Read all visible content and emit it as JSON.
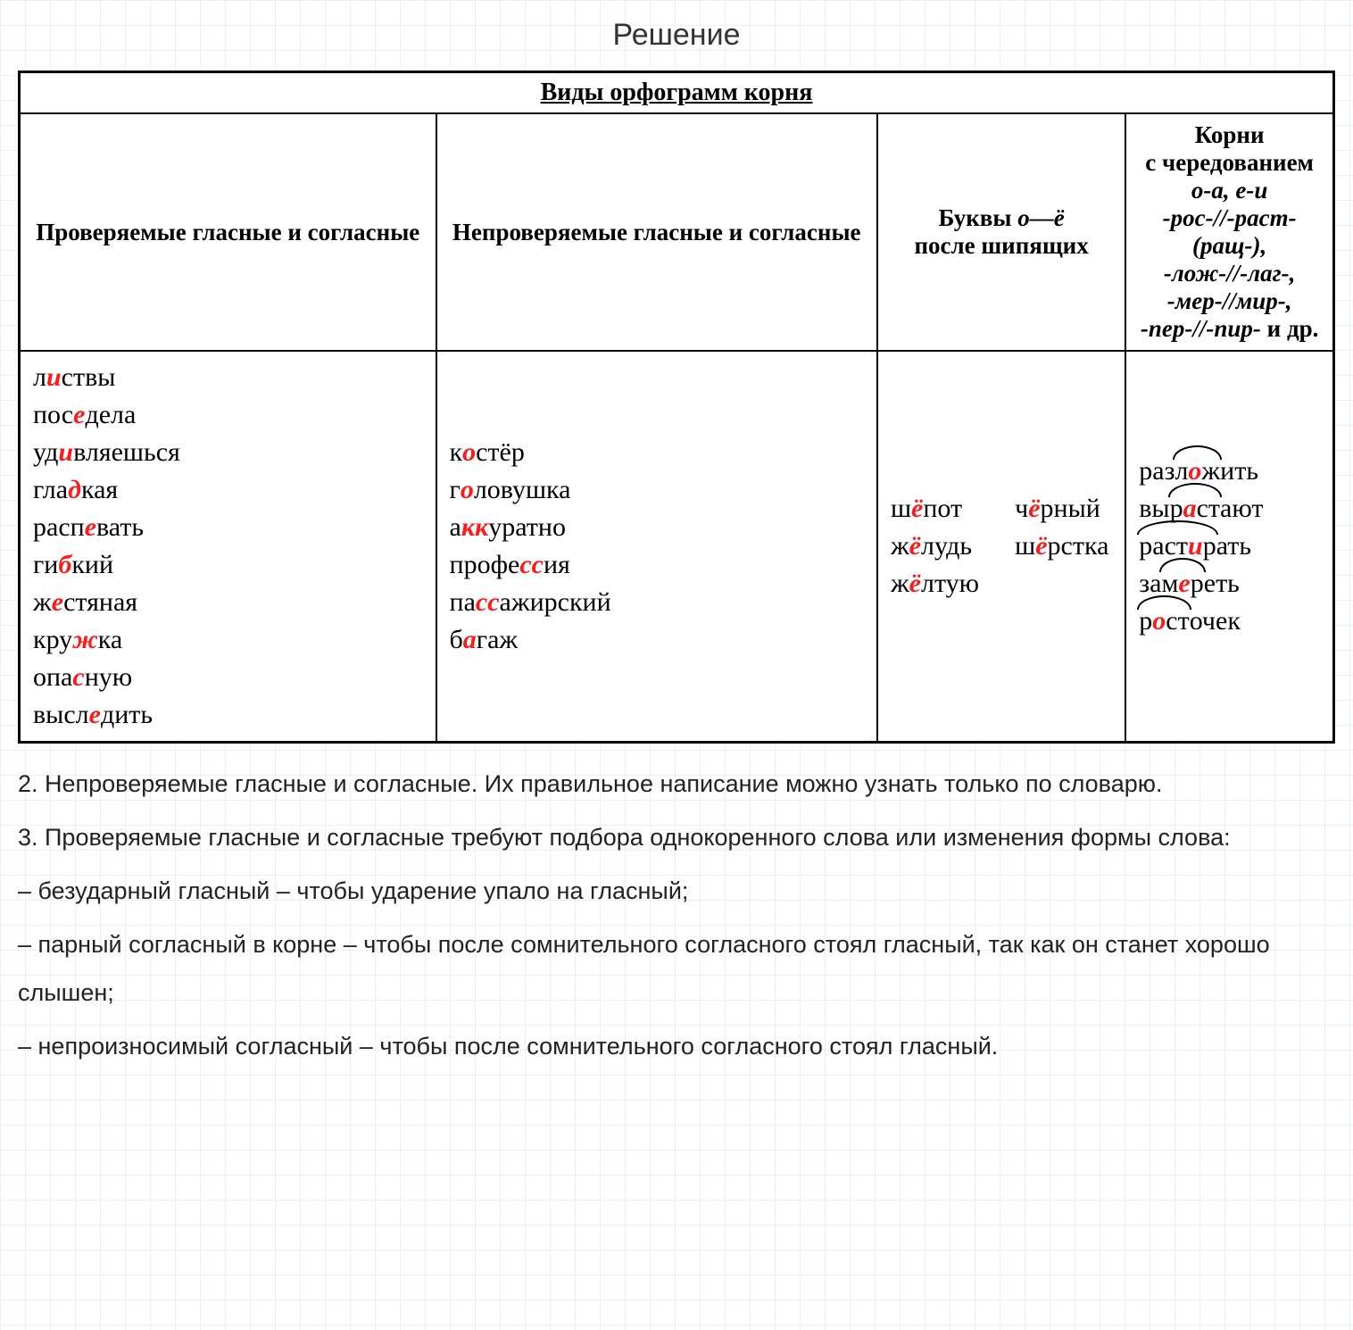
{
  "title": "Решение",
  "table": {
    "main_header": "Виды орфограмм корня",
    "columns": [
      "Проверяемые гласные и согласные",
      "Непроверяемые гласные и согласные",
      "Буквы <span class='italic'>о—ё</span><br>после шипящих",
      "Корни<br>с чередованием<br><span class='italic'>о-а, е-и<br>-рос-//-раст-<br>(ращ-),<br>-лож-//-лаг-,<br>-мер-//мир-,<br>-пер-//-пир-</span> и др."
    ],
    "col1": [
      "л<span class='hl'>и</span>ствы",
      "пос<span class='hl'>е</span>дела",
      "уд<span class='hl'>и</span>вляешься",
      "гла<span class='hl'>д</span>кая",
      "расп<span class='hl'>е</span>вать",
      "ги<span class='hl'>б</span>кий",
      "ж<span class='hl'>е</span>стяная",
      "кру<span class='hl'>ж</span>ка",
      "опа<span class='hl'>с</span>ную",
      "высл<span class='hl'>е</span>дить"
    ],
    "col2": [
      "к<span class='hl'>о</span>стёр",
      "г<span class='hl'>о</span>ловушка",
      "а<span class='hl'>кк</span>уратно",
      "профе<span class='hl'>сс</span>ия",
      "па<span class='hl'>сс</span>ажирский",
      "б<span class='hl'>а</span>гаж"
    ],
    "col3_left": [
      "ш<span class='hl'>ё</span>пот",
      "ж<span class='hl'>ё</span>лудь",
      "ж<span class='hl'>ё</span>лтую"
    ],
    "col3_right": [
      "ч<span class='hl'>ё</span>рный",
      "ш<span class='hl'>ё</span>рстка"
    ],
    "col4": [
      "раз<span class='arc'>л<span class='hl'>о</span>ж</span>ить",
      "вы<span class='arc'>р<span class='hl'>а</span>ст</span>ают",
      "<span class='arc'>раст<span class='hl'>и</span>р</span>ать",
      "за<span class='arc'>м<span class='hl'>е</span>р</span>еть",
      "<span class='arc'>р<span class='hl'>о</span>ст</span>очек"
    ]
  },
  "explanation": [
    "2. Непроверяемые гласные и согласные. Их правильное написание можно узнать только по словарю.",
    "3. Проверяемые гласные и согласные требуют подбора однокоренного слова или изменения формы слова:",
    "– безударный гласный – чтобы ударение упало на гласный;",
    "– парный согласный в корне – чтобы после сомнительного согласного стоял гласный, так как он станет хорошо слышен;",
    "– непроизносимый согласный – чтобы после сомнительного согласного стоял гласный."
  ]
}
